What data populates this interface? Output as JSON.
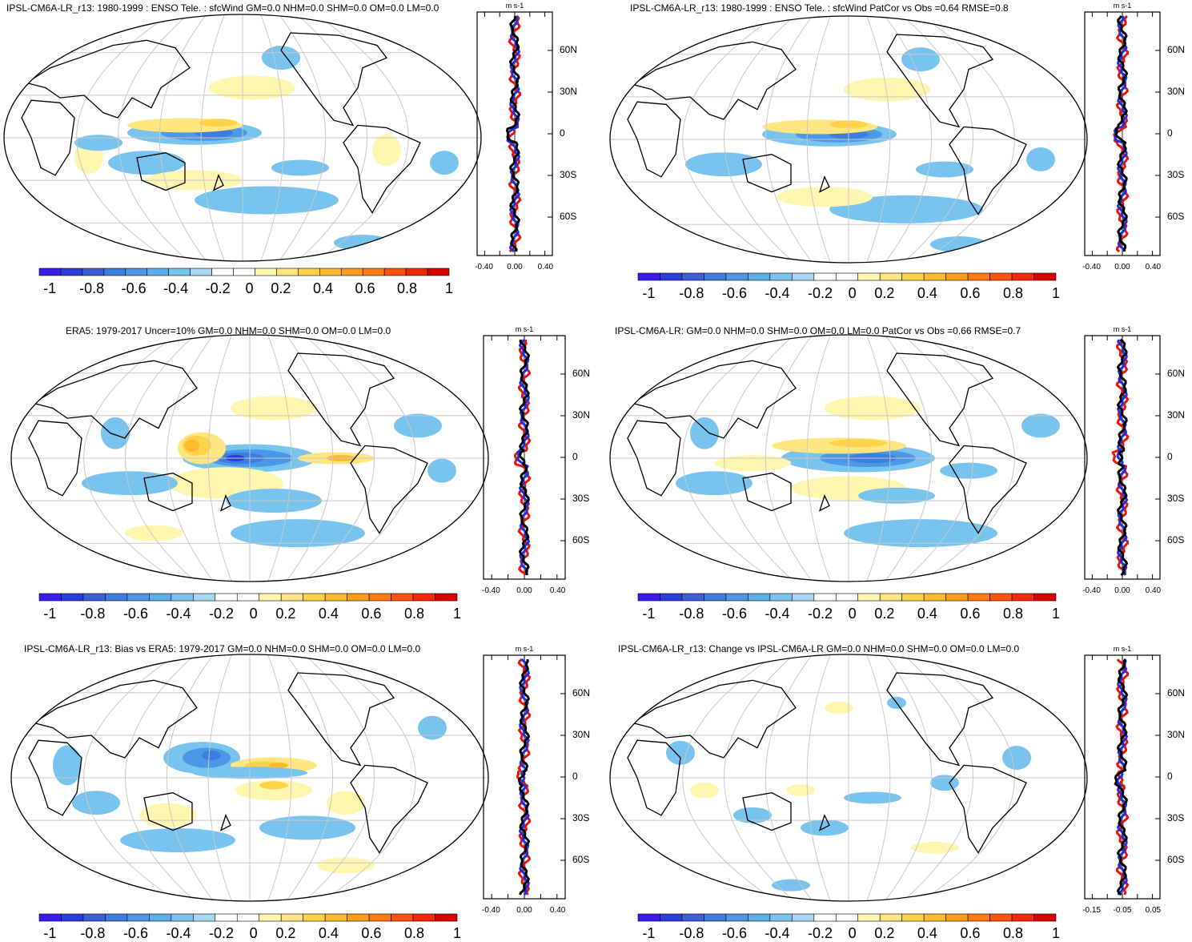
{
  "panels": [
    {
      "id": "tl",
      "title": "IPSL-CM6A-LR_r13: 1980-1999 : ENSO Tele. : sfcWind GM=0.0 NHM=0.0 SHM=0.0 OM=0.0 LM=0.0",
      "cbar_labels": [
        "-1",
        "-0.8",
        "-0.6",
        "-0.4",
        "-0.2",
        "0",
        "0.2",
        "0.4",
        "0.6",
        "0.8",
        "1"
      ],
      "zonal": {
        "unit": "m s-1",
        "lat_labels": [
          "60N",
          "30N",
          "0",
          "30S",
          "60S"
        ],
        "x_labels": [
          "-0.40",
          "0.00",
          "0.40"
        ]
      }
    },
    {
      "id": "tr",
      "title": "IPSL-CM6A-LR_r13: 1980-1999 : ENSO Tele. : sfcWind PatCor vs Obs =0.64 RMSE=0.8",
      "cbar_labels": [
        "-1",
        "-0.8",
        "-0.6",
        "-0.4",
        "-0.2",
        "0",
        "0.2",
        "0.4",
        "0.6",
        "0.8",
        "1"
      ],
      "zonal": {
        "unit": "m s-1",
        "lat_labels": [
          "60N",
          "30N",
          "0",
          "30S",
          "60S"
        ],
        "x_labels": [
          "-0.40",
          "0.00",
          "0.40"
        ]
      }
    },
    {
      "id": "ml",
      "title": "ERA5: 1979-2017 Uncer=10% GM=0.0 NHM=0.0 SHM=0.0 OM=0.0 LM=0.0",
      "cbar_labels": [
        "-1",
        "-0.8",
        "-0.6",
        "-0.4",
        "-0.2",
        "0",
        "0.2",
        "0.4",
        "0.6",
        "0.8",
        "1"
      ],
      "zonal": {
        "unit": "m s-1",
        "lat_labels": [
          "60N",
          "30N",
          "0",
          "30S",
          "60S"
        ],
        "x_labels": [
          "-0.40",
          "0.00",
          "0.40"
        ]
      }
    },
    {
      "id": "mr",
      "title": "IPSL-CM6A-LR: GM=0.0 NHM=0.0 SHM=0.0 OM=0.0 LM=0.0 PatCor vs Obs =0.66 RMSE=0.7",
      "cbar_labels": [
        "-1",
        "-0.8",
        "-0.6",
        "-0.4",
        "-0.2",
        "0",
        "0.2",
        "0.4",
        "0.6",
        "0.8",
        "1"
      ],
      "zonal": {
        "unit": "m s-1",
        "lat_labels": [
          "60N",
          "30N",
          "0",
          "30S",
          "60S"
        ],
        "x_labels": [
          "-0.40",
          "0.00",
          "0.40"
        ]
      }
    },
    {
      "id": "bl",
      "title": "IPSL-CM6A-LR_r13: Bias vs ERA5: 1979-2017 GM=0.0 NHM=0.0 SHM=0.0 OM=0.0 LM=0.0",
      "cbar_labels": [
        "-1",
        "-0.8",
        "-0.6",
        "-0.4",
        "-0.2",
        "0",
        "0.2",
        "0.4",
        "0.6",
        "0.8",
        "1"
      ],
      "zonal": {
        "unit": "m s-1",
        "lat_labels": [
          "60N",
          "30N",
          "0",
          "30S",
          "60S"
        ],
        "x_labels": [
          "-0.40",
          "0.00",
          "0.40"
        ]
      }
    },
    {
      "id": "br",
      "title": "IPSL-CM6A-LR_r13: Change vs IPSL-CM6A-LR GM=0.0 NHM=0.0 SHM=0.0 OM=0.0 LM=0.0",
      "cbar_labels": [
        "-1",
        "-0.8",
        "-0.6",
        "-0.4",
        "-0.2",
        "0",
        "0.2",
        "0.4",
        "0.6",
        "0.8",
        "1"
      ],
      "zonal": {
        "unit": "m s-1",
        "lat_labels": [
          "60N",
          "30N",
          "0",
          "30S",
          "60S"
        ],
        "x_labels": [
          "-0.15",
          "-0.05",
          "0.05"
        ]
      }
    }
  ],
  "colors": {
    "palette": [
      "#3b1ee6",
      "#2b3ed9",
      "#3a5fd6",
      "#3b7ee0",
      "#4a98e6",
      "#5aaeec",
      "#79c4ee",
      "#a9d8f2",
      "#ffffff",
      "#ffffff",
      "#fff6b0",
      "#ffe680",
      "#ffd24a",
      "#ffb92e",
      "#ff9c1e",
      "#ff7a14",
      "#ff520e",
      "#f02a08",
      "#d90000"
    ],
    "line_red": "#e8140c",
    "line_blue": "#1a2fe6",
    "line_black": "#000000"
  }
}
